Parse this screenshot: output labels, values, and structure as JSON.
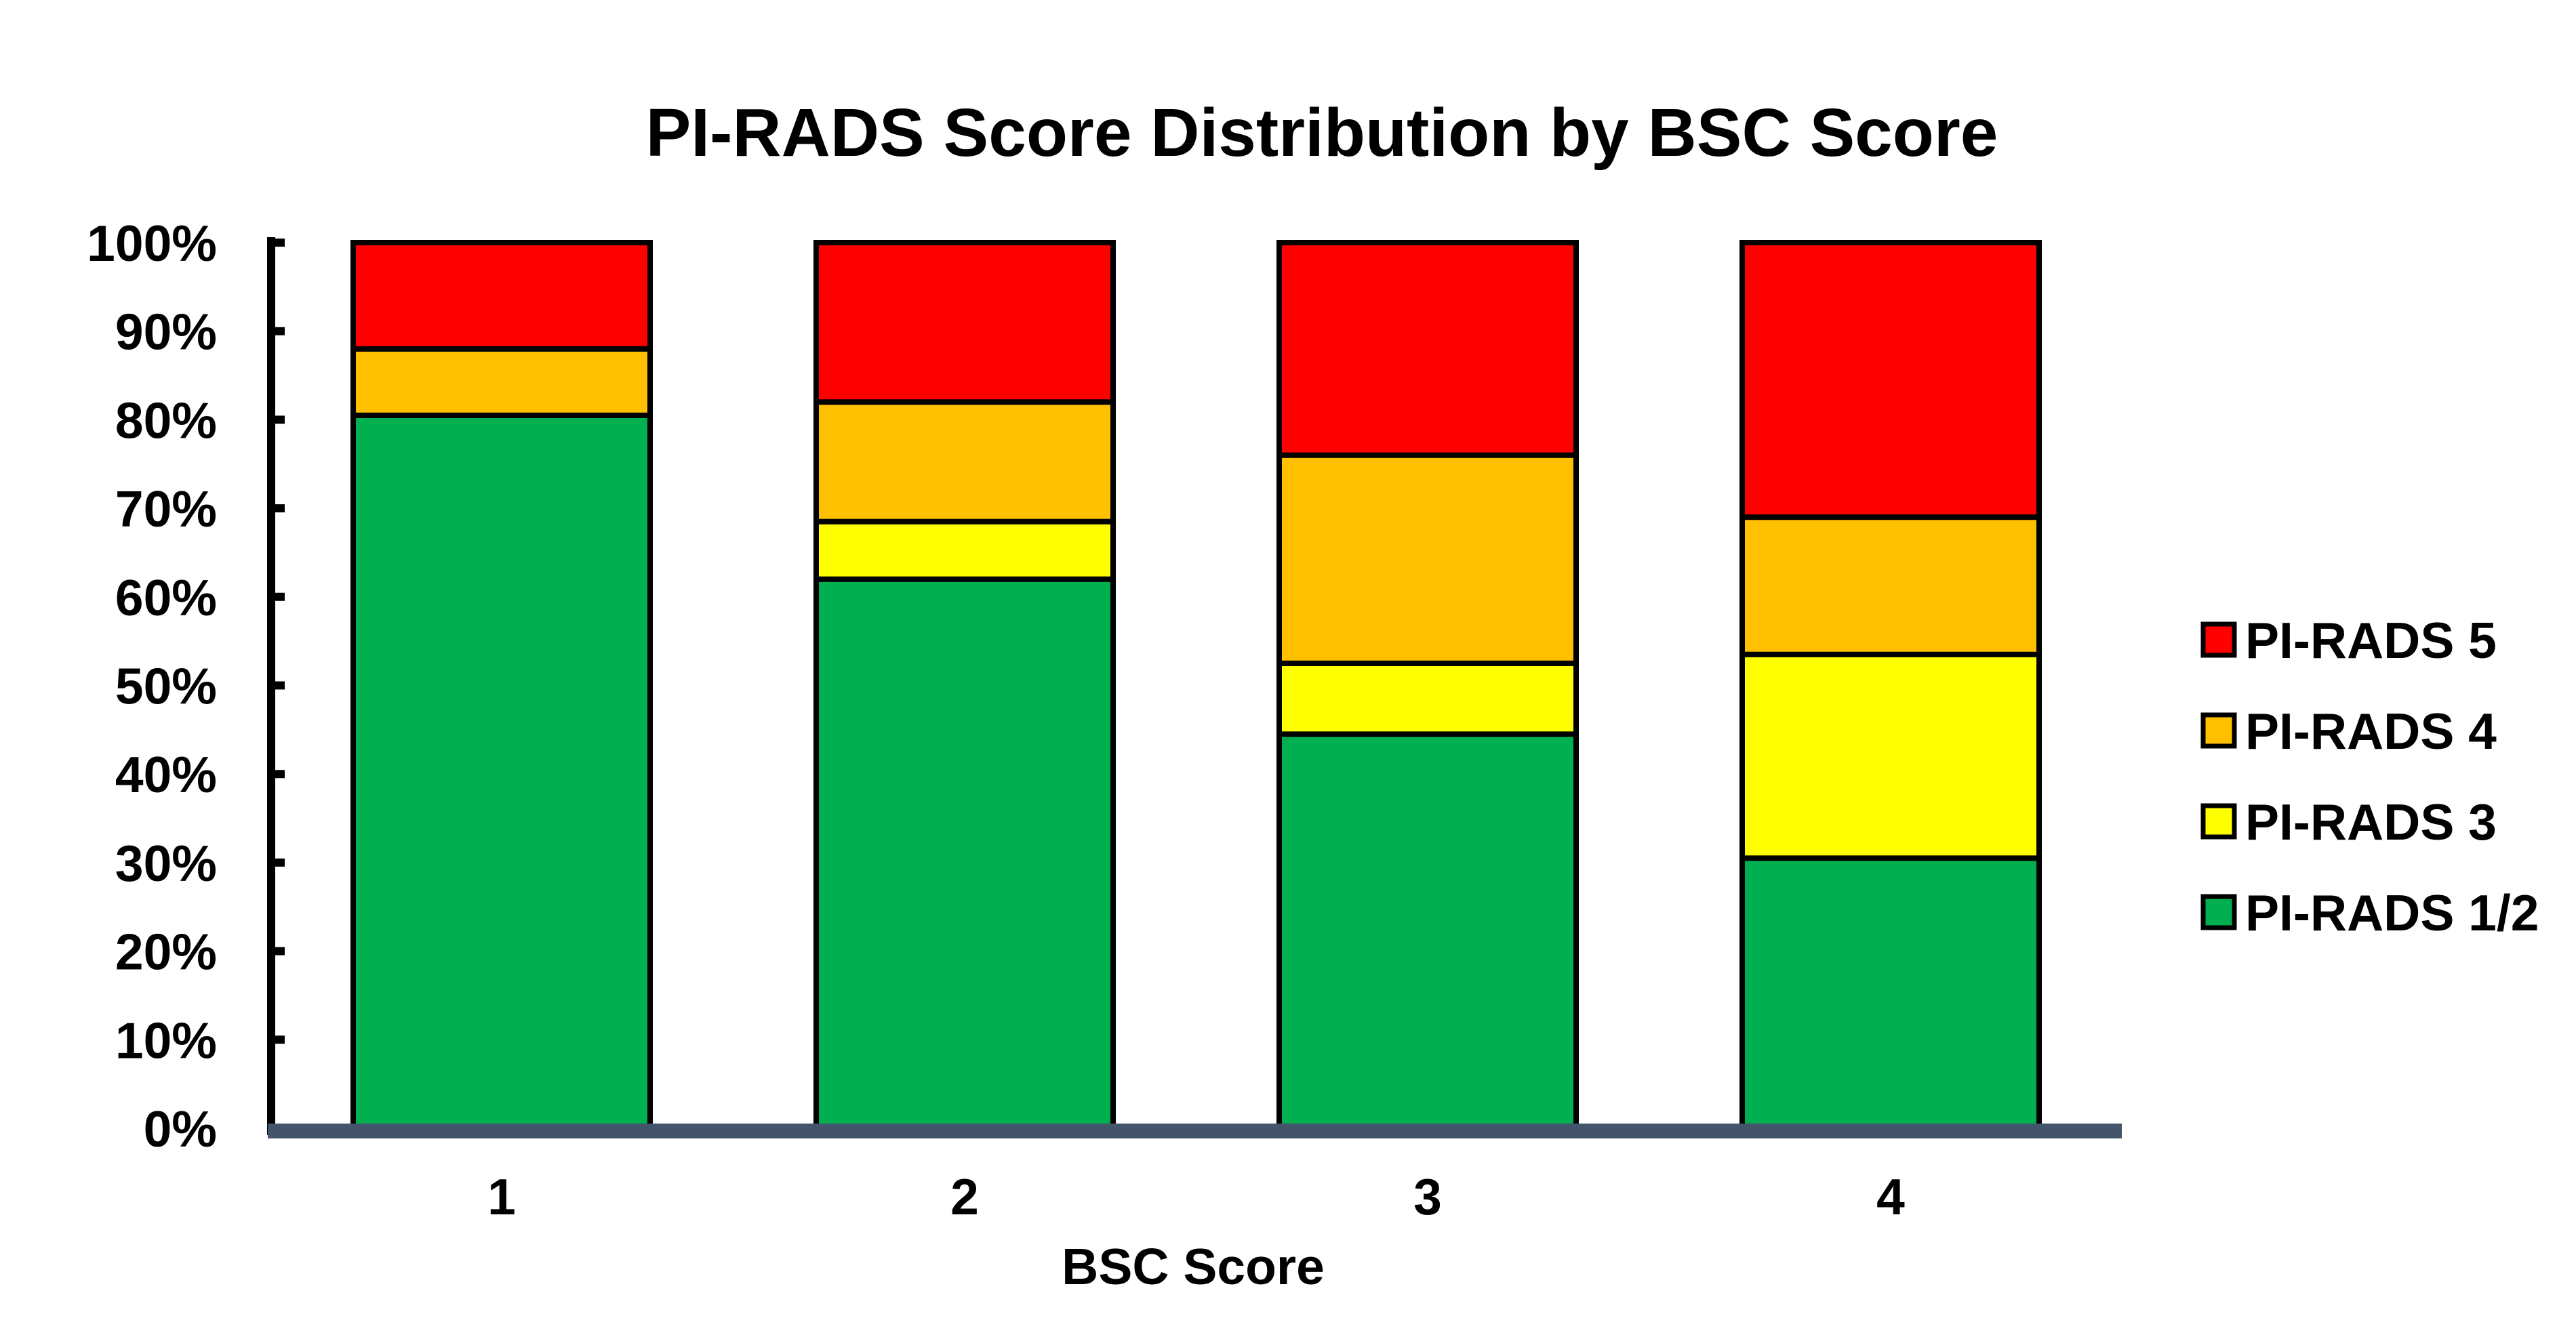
{
  "chart_data": {
    "type": "bar",
    "stacked": true,
    "title": "PI-RADS Score Distribution by BSC Score",
    "xlabel": "BSC Score",
    "ylabel": "",
    "categories": [
      "1",
      "2",
      "3",
      "4"
    ],
    "ylim": [
      0,
      100
    ],
    "y_ticks": [
      "0%",
      "10%",
      "20%",
      "30%",
      "40%",
      "50%",
      "60%",
      "70%",
      "80%",
      "90%",
      "100%"
    ],
    "grid": false,
    "legend_position": "right",
    "series": [
      {
        "name": "PI-RADS 1/2",
        "color": "#00B050",
        "values": [
          80.5,
          62,
          44.5,
          30.5
        ]
      },
      {
        "name": "PI-RADS 3",
        "color": "#FFFF00",
        "values": [
          0,
          6.5,
          8,
          23
        ]
      },
      {
        "name": "PI-RADS 4",
        "color": "#FFC000",
        "values": [
          7.5,
          13.5,
          23.5,
          15.5
        ]
      },
      {
        "name": "PI-RADS 5",
        "color": "#FF0000",
        "values": [
          12,
          18,
          24,
          31
        ]
      }
    ],
    "legend_order": [
      "PI-RADS 5",
      "PI-RADS 4",
      "PI-RADS 3",
      "PI-RADS 1/2"
    ],
    "axis_color": "#44546A"
  }
}
